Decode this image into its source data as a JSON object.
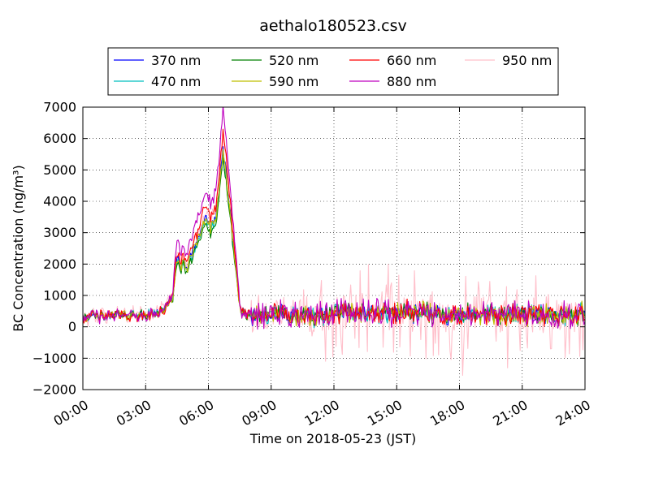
{
  "chart_data": {
    "type": "line",
    "title": "aethalo180523.csv",
    "xlabel": "Time on 2018-05-23 (JST)",
    "ylabel": "BC Concentration (ng/m³)",
    "xlim": [
      0,
      24
    ],
    "ylim": [
      -2000,
      7000
    ],
    "x_ticks": [
      0,
      3,
      6,
      9,
      12,
      15,
      18,
      21,
      24
    ],
    "x_tick_labels": [
      "00:00",
      "03:00",
      "06:00",
      "09:00",
      "12:00",
      "15:00",
      "18:00",
      "21:00",
      "24:00"
    ],
    "y_ticks": [
      -2000,
      -1000,
      0,
      1000,
      2000,
      3000,
      4000,
      5000,
      6000,
      7000
    ],
    "y_tick_labels": [
      "−2000",
      "−1000",
      "0",
      "1000",
      "2000",
      "3000",
      "4000",
      "5000",
      "6000",
      "7000"
    ],
    "grid": true,
    "legend_position": "top",
    "series": [
      {
        "name": "370 nm",
        "color": "#0000ff",
        "peak": 5300,
        "spread": 180
      },
      {
        "name": "470 nm",
        "color": "#00bfbf",
        "peak": 5100,
        "spread": 190
      },
      {
        "name": "520 nm",
        "color": "#008000",
        "peak": 4950,
        "spread": 200
      },
      {
        "name": "590 nm",
        "color": "#bfbf00",
        "peak": 5200,
        "spread": 230
      },
      {
        "name": "660 nm",
        "color": "#ff0000",
        "peak": 5800,
        "spread": 260
      },
      {
        "name": "880 nm",
        "color": "#bf00bf",
        "peak": 6500,
        "spread": 300
      },
      {
        "name": "950 nm",
        "color": "#ffc0cb",
        "peak": 5600,
        "spread": 480
      }
    ],
    "trend": {
      "x": [
        0.0,
        0.5,
        1.0,
        1.5,
        2.0,
        2.5,
        3.0,
        3.5,
        4.0,
        4.3,
        4.5,
        4.7,
        5.0,
        5.3,
        5.6,
        5.9,
        6.1,
        6.3,
        6.5,
        6.7,
        6.8,
        6.9,
        7.1,
        7.3,
        7.5,
        7.8,
        8.0,
        8.5,
        9.0,
        10.0,
        11.0,
        12.0,
        13.0,
        14.0,
        15.0,
        16.0,
        17.0,
        18.0,
        19.0,
        20.0,
        21.0,
        22.0,
        23.0,
        23.5,
        24.0
      ],
      "y": [
        300,
        350,
        300,
        400,
        350,
        380,
        350,
        450,
        600,
        1000,
        2100,
        2000,
        1900,
        2500,
        3000,
        3500,
        3100,
        3300,
        4200,
        5500,
        5100,
        4500,
        3200,
        2000,
        600,
        300,
        350,
        400,
        450,
        350,
        350,
        400,
        500,
        450,
        450,
        450,
        400,
        400,
        400,
        400,
        400,
        400,
        380,
        300,
        500
      ]
    }
  }
}
